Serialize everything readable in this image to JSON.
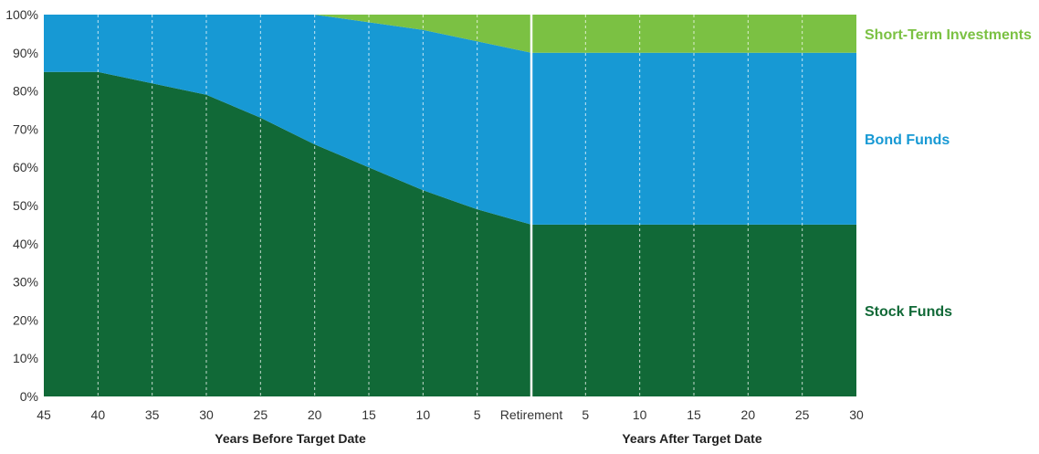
{
  "chart_data": {
    "type": "area",
    "stacked": true,
    "ylim": [
      0,
      100
    ],
    "y_ticks": [
      "0%",
      "10%",
      "20%",
      "30%",
      "40%",
      "50%",
      "60%",
      "70%",
      "80%",
      "90%",
      "100%"
    ],
    "x_tick_labels": [
      "45",
      "40",
      "35",
      "30",
      "25",
      "20",
      "15",
      "10",
      "5",
      "Retirement",
      "5",
      "10",
      "15",
      "20",
      "25",
      "30"
    ],
    "x_group_labels": [
      "Years Before Target Date",
      "Years After Target Date"
    ],
    "grid": "vertical dashed",
    "divider_at": "Retirement",
    "legend_placement": "right",
    "series": [
      {
        "name": "Stock Funds",
        "color": "#116937",
        "values": [
          85,
          85,
          82,
          79,
          73,
          66,
          60,
          54,
          49,
          45,
          45,
          45,
          45,
          45,
          45,
          45
        ]
      },
      {
        "name": "Bond Funds",
        "color": "#1799d4",
        "values": [
          15,
          15,
          18,
          21,
          27,
          34,
          38,
          42,
          44,
          45,
          45,
          45,
          45,
          45,
          45,
          45
        ]
      },
      {
        "name": "Short-Term Investments",
        "color": "#7bc143",
        "values": [
          0,
          0,
          0,
          0,
          0,
          0,
          2,
          4,
          7,
          10,
          10,
          10,
          10,
          10,
          10,
          10
        ]
      }
    ]
  }
}
